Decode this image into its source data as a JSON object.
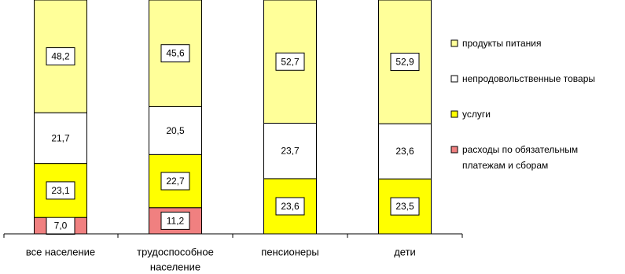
{
  "chart_data": {
    "type": "bar",
    "stacked": true,
    "normalized_percent": true,
    "categories": [
      "все население",
      "трудоспособное население",
      "пенсионеры",
      "дети"
    ],
    "category_label_lines": [
      [
        "все население"
      ],
      [
        "трудоспособное",
        "население"
      ],
      [
        "пенсионеры"
      ],
      [
        "дети"
      ]
    ],
    "series": [
      {
        "name": "расходы по обязательным платежам и сборам",
        "legend_lines": [
          "расходы по обязательным",
          "платежам и сборам"
        ],
        "color": "#f08080",
        "values": [
          7.0,
          11.2,
          0,
          0
        ],
        "labels": [
          "7,0",
          "11,2",
          "",
          ""
        ]
      },
      {
        "name": "услуги",
        "legend_lines": [
          "услуги"
        ],
        "color": "#ffff00",
        "values": [
          23.1,
          22.7,
          23.6,
          23.5
        ],
        "labels": [
          "23,1",
          "22,7",
          "23,6",
          "23,5"
        ]
      },
      {
        "name": "непродовольственные товары",
        "legend_lines": [
          "непродовольственные товары"
        ],
        "color": "#ffffff",
        "values": [
          21.7,
          20.5,
          23.7,
          23.6
        ],
        "labels": [
          "21,7",
          "20,5",
          "23,7",
          "23,6"
        ]
      },
      {
        "name": "продукты питания",
        "legend_lines": [
          "продукты питания"
        ],
        "color": "#ffff99",
        "values": [
          48.2,
          45.6,
          52.7,
          52.9
        ],
        "labels": [
          "48,2",
          "45,6",
          "52,7",
          "52,9"
        ]
      }
    ],
    "legend_order": [
      3,
      2,
      1,
      0
    ],
    "legend_position": "right",
    "grid": false
  }
}
